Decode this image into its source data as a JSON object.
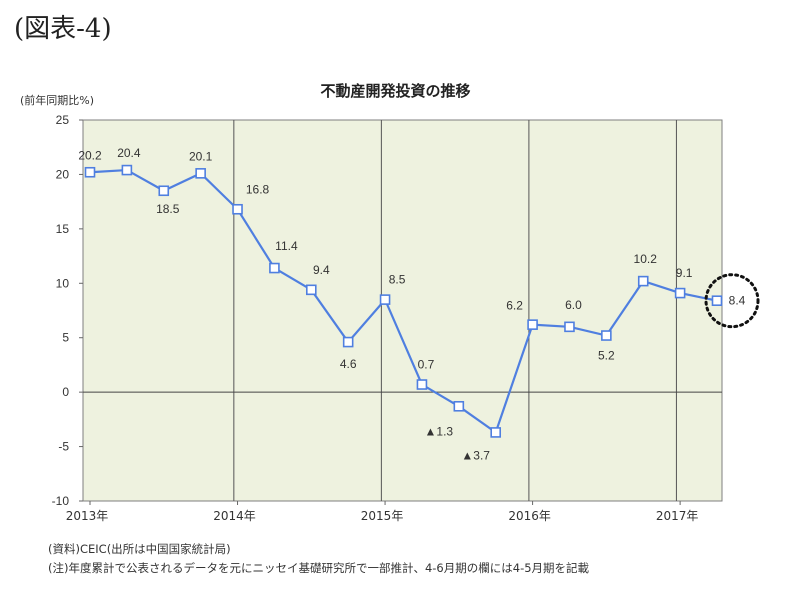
{
  "figure_label": "(図表-4)",
  "notes": {
    "source": "(資料)CEIC(出所は中国国家統計局)",
    "note": "(注)年度累計で公表されるデータを元にニッセイ基礎研究所で一部推計、4-6月期の欄には4-5月期を記載"
  },
  "chart_data": {
    "type": "line",
    "title": "不動産開発投資の推移",
    "ylabel": "(前年同期比%)",
    "xlabel": "",
    "ylim": [
      -10,
      25
    ],
    "yticks": [
      25,
      20,
      15,
      10,
      5,
      0,
      -5,
      -10
    ],
    "grid": "vertical year separators",
    "x_tick_labels": [
      "2013年",
      "2014年",
      "2015年",
      "2016年",
      "2017年"
    ],
    "x_tick_index": [
      0,
      4,
      8,
      12,
      16
    ],
    "series": [
      {
        "name": "",
        "color": "#4f7fe0",
        "marker": "open-square",
        "values": [
          20.2,
          20.4,
          18.5,
          20.1,
          16.8,
          11.4,
          9.4,
          4.6,
          8.5,
          0.7,
          -1.3,
          -3.7,
          6.2,
          6.0,
          5.2,
          10.2,
          9.1,
          8.4
        ]
      }
    ],
    "data_labels": [
      {
        "i": 0,
        "text": "20.2"
      },
      {
        "i": 1,
        "text": "20.4"
      },
      {
        "i": 2,
        "text": "18.5"
      },
      {
        "i": 3,
        "text": "20.1"
      },
      {
        "i": 4,
        "text": "16.8"
      },
      {
        "i": 5,
        "text": "11.4"
      },
      {
        "i": 6,
        "text": "9.4"
      },
      {
        "i": 7,
        "text": "4.6"
      },
      {
        "i": 8,
        "text": "8.5"
      },
      {
        "i": 9,
        "text": "0.7"
      },
      {
        "i": 10,
        "text": "▲1.3"
      },
      {
        "i": 11,
        "text": "▲3.7"
      },
      {
        "i": 12,
        "text": "6.2"
      },
      {
        "i": 13,
        "text": "6.0"
      },
      {
        "i": 14,
        "text": "5.2"
      },
      {
        "i": 15,
        "text": "10.2"
      },
      {
        "i": 16,
        "text": "9.1"
      },
      {
        "i": 17,
        "text": "8.4"
      }
    ],
    "highlight": {
      "i": 17,
      "style": "dotted circle"
    },
    "plot_background": "#eef2df"
  }
}
